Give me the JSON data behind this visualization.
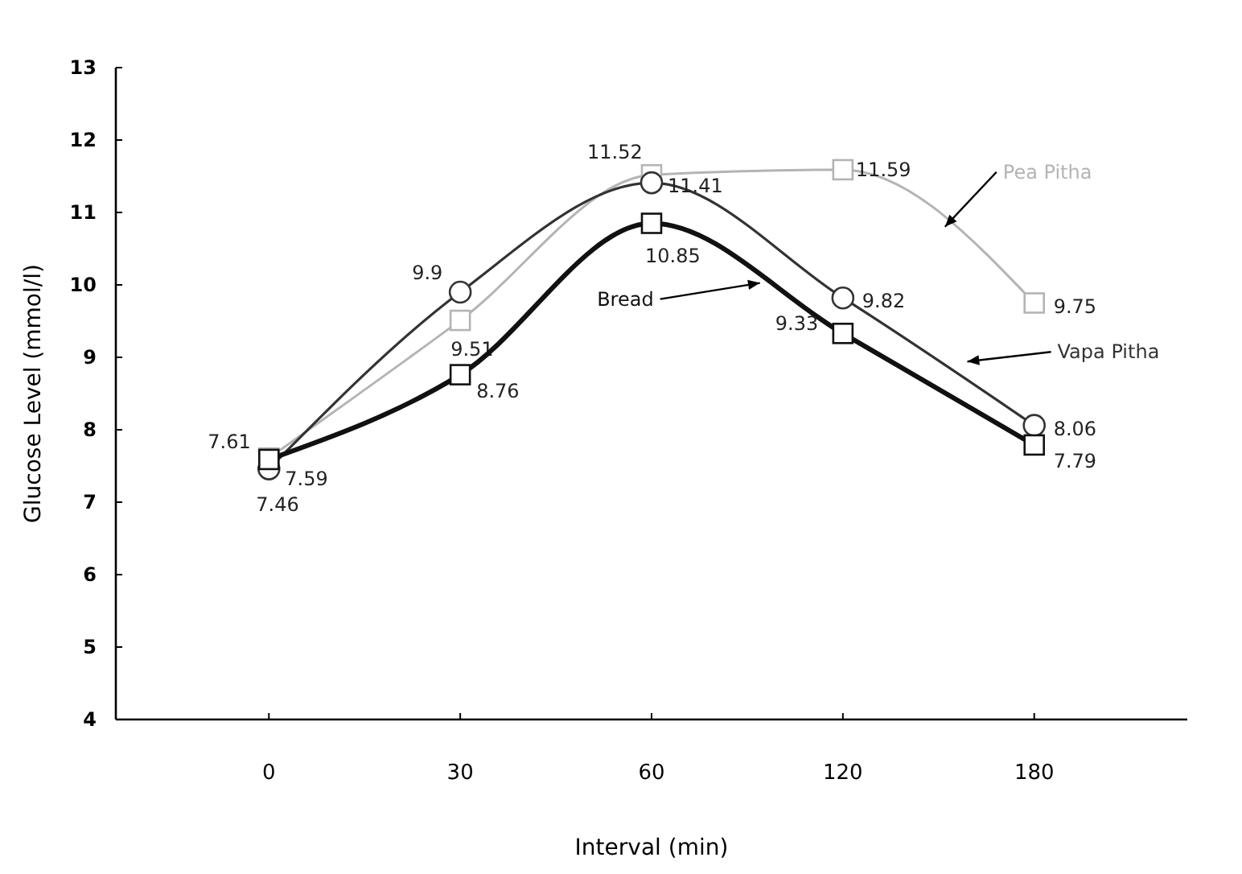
{
  "chart_data": {
    "type": "line",
    "xlabel": "Interval (min)",
    "ylabel": "Glucose Level (mmol/l)",
    "categories": [
      "0",
      "30",
      "60",
      "120",
      "180"
    ],
    "ylim": [
      4,
      13
    ],
    "yticks": [
      4,
      5,
      6,
      7,
      8,
      9,
      10,
      11,
      12,
      13
    ],
    "grid": false,
    "legend": false,
    "data_labels": true,
    "series": [
      {
        "name": "Pea Pitha",
        "color": "#b4b4b4",
        "marker": "square",
        "values": [
          7.61,
          9.51,
          11.52,
          11.59,
          9.75
        ]
      },
      {
        "name": "Vapa Pitha",
        "color": "#333333",
        "marker": "circle",
        "values": [
          7.46,
          9.9,
          11.41,
          9.82,
          8.06
        ]
      },
      {
        "name": "Bread",
        "color": "#111111",
        "marker": "square",
        "values": [
          7.59,
          8.76,
          10.85,
          9.33,
          7.79
        ]
      }
    ]
  }
}
